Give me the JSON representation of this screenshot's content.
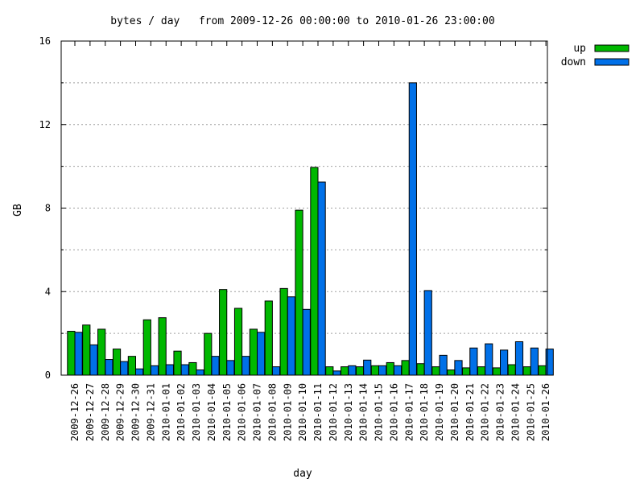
{
  "chart_data": {
    "type": "bar",
    "title": "bytes / day   from 2009-12-26 00:00:00 to 2010-01-26 23:00:00",
    "xlabel": "day",
    "ylabel": "GB",
    "ylim": [
      0,
      16
    ],
    "yticks": [
      0,
      4,
      8,
      12,
      16
    ],
    "grid": true,
    "legend_position": "top-right-outside",
    "categories": [
      "2009-12-26",
      "2009-12-27",
      "2009-12-28",
      "2009-12-29",
      "2009-12-30",
      "2009-12-31",
      "2010-01-01",
      "2010-01-02",
      "2010-01-03",
      "2010-01-04",
      "2010-01-05",
      "2010-01-06",
      "2010-01-07",
      "2010-01-08",
      "2010-01-09",
      "2010-01-10",
      "2010-01-11",
      "2010-01-12",
      "2010-01-13",
      "2010-01-14",
      "2010-01-15",
      "2010-01-16",
      "2010-01-17",
      "2010-01-18",
      "2010-01-19",
      "2010-01-20",
      "2010-01-21",
      "2010-01-22",
      "2010-01-23",
      "2010-01-24",
      "2010-01-25",
      "2010-01-26"
    ],
    "series": [
      {
        "name": "up",
        "color": "#00b800",
        "values": [
          2.1,
          2.4,
          2.2,
          1.25,
          0.9,
          2.65,
          2.75,
          1.15,
          0.6,
          2.0,
          4.1,
          3.2,
          2.2,
          3.55,
          4.15,
          7.9,
          9.95,
          0.4,
          0.4,
          0.4,
          0.45,
          0.6,
          0.7,
          0.55,
          0.4,
          0.25,
          0.35,
          0.4,
          0.35,
          0.5,
          0.4,
          0.45
        ]
      },
      {
        "name": "down",
        "color": "#0070e8",
        "values": [
          2.05,
          1.45,
          0.75,
          0.65,
          0.3,
          0.45,
          0.5,
          0.5,
          0.25,
          0.9,
          0.7,
          0.9,
          2.05,
          0.4,
          3.75,
          3.15,
          9.25,
          0.2,
          0.45,
          0.72,
          0.45,
          0.45,
          14.0,
          4.05,
          0.95,
          0.7,
          1.3,
          1.5,
          1.2,
          1.6,
          1.3,
          1.25
        ]
      }
    ]
  }
}
